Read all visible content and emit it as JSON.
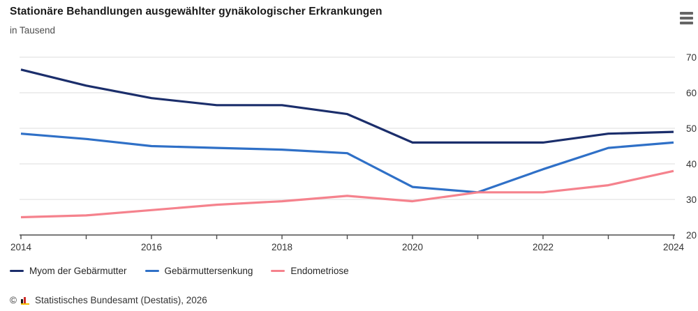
{
  "chart_data": {
    "type": "line",
    "title": "Stationäre Behandlungen ausgewählter gynäkologischer Erkrankungen",
    "subtitle": "in Tausend",
    "x": [
      2014,
      2015,
      2016,
      2017,
      2018,
      2019,
      2020,
      2021,
      2022,
      2023,
      2024
    ],
    "x_labeled_ticks": [
      "2014",
      "2016",
      "2018",
      "2020",
      "2022",
      "2024"
    ],
    "ylim": [
      20,
      70
    ],
    "yticks": [
      20,
      30,
      40,
      50,
      60,
      70
    ],
    "grid": "horizontal",
    "legend_position": "bottom",
    "y_axis_side": "right",
    "series": [
      {
        "name": "Myom der Gebärmutter",
        "color": "#1b2e6b",
        "values": [
          66.5,
          62,
          58.5,
          56.5,
          56.5,
          54,
          46,
          46,
          46,
          48.5,
          49
        ]
      },
      {
        "name": "Gebärmuttersenkung",
        "color": "#2f70c7",
        "values": [
          48.5,
          47,
          45,
          44.5,
          44,
          43,
          33.5,
          32,
          38.5,
          44.5,
          46
        ]
      },
      {
        "name": "Endometriose",
        "color": "#f5828d",
        "values": [
          25,
          25.5,
          27,
          28.5,
          29.5,
          31,
          29.5,
          32,
          32,
          34,
          38
        ]
      }
    ]
  },
  "styles": {
    "gridline_color": "#e9e9e9",
    "axis_color": "#4d4d4d",
    "tick_label_color": "#333333"
  },
  "footer": {
    "copyright": "©",
    "source": "Statistisches Bundesamt (Destatis), 2026"
  }
}
